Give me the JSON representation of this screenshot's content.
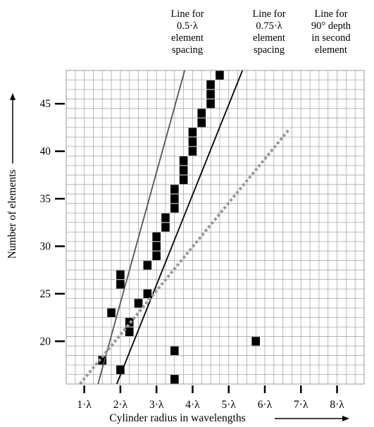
{
  "chart_data": {
    "type": "scatter",
    "xlabel": "Cylinder radius in wavelengths",
    "ylabel": "Number of elements",
    "x_ticks": [
      {
        "value": 1,
        "label": "1·λ"
      },
      {
        "value": 2,
        "label": "2·λ"
      },
      {
        "value": 3,
        "label": "3·λ"
      },
      {
        "value": 4,
        "label": "4·λ"
      },
      {
        "value": 5,
        "label": "5·λ"
      },
      {
        "value": 6,
        "label": "6·λ"
      },
      {
        "value": 7,
        "label": "7·λ"
      },
      {
        "value": 8,
        "label": "8·λ"
      }
    ],
    "y_ticks": [
      {
        "value": 20,
        "label": "20"
      },
      {
        "value": 25,
        "label": "25"
      },
      {
        "value": 30,
        "label": "30"
      },
      {
        "value": 35,
        "label": "35"
      },
      {
        "value": 40,
        "label": "40"
      },
      {
        "value": 45,
        "label": "45"
      }
    ],
    "xlim": [
      0.5,
      8.75
    ],
    "ylim": [
      15.5,
      48.5
    ],
    "grid": true,
    "cell_width": 0.25,
    "series": [
      {
        "name": "",
        "marker": "filled-square",
        "points": [
          {
            "x": 1.5,
            "y": 18
          },
          {
            "x": 1.75,
            "y": 23
          },
          {
            "x": 2.0,
            "y": 17
          },
          {
            "x": 2.0,
            "y": 26
          },
          {
            "x": 2.0,
            "y": 27
          },
          {
            "x": 2.25,
            "y": 21
          },
          {
            "x": 2.25,
            "y": 22
          },
          {
            "x": 2.5,
            "y": 24
          },
          {
            "x": 2.75,
            "y": 25
          },
          {
            "x": 2.75,
            "y": 28
          },
          {
            "x": 3.0,
            "y": 29
          },
          {
            "x": 3.0,
            "y": 30
          },
          {
            "x": 3.0,
            "y": 31
          },
          {
            "x": 3.25,
            "y": 32
          },
          {
            "x": 3.25,
            "y": 33
          },
          {
            "x": 3.5,
            "y": 16
          },
          {
            "x": 3.5,
            "y": 19
          },
          {
            "x": 3.5,
            "y": 34
          },
          {
            "x": 3.5,
            "y": 35
          },
          {
            "x": 3.5,
            "y": 36
          },
          {
            "x": 3.75,
            "y": 37
          },
          {
            "x": 3.75,
            "y": 38
          },
          {
            "x": 3.75,
            "y": 39
          },
          {
            "x": 4.0,
            "y": 40
          },
          {
            "x": 4.0,
            "y": 41
          },
          {
            "x": 4.0,
            "y": 42
          },
          {
            "x": 4.25,
            "y": 43
          },
          {
            "x": 4.25,
            "y": 44
          },
          {
            "x": 4.5,
            "y": 45
          },
          {
            "x": 4.5,
            "y": 46
          },
          {
            "x": 4.5,
            "y": 47
          },
          {
            "x": 4.75,
            "y": 48
          },
          {
            "x": 5.75,
            "y": 20
          }
        ]
      }
    ],
    "lines": [
      {
        "id": "line-half-lambda",
        "style": "solid",
        "color": "#555555",
        "label_lines": [
          "Line for",
          "0.5·λ",
          "element",
          "spacing"
        ],
        "from": [
          1.38,
          15.5
        ],
        "to": [
          3.78,
          48.5
        ]
      },
      {
        "id": "line-three-quarter-lambda",
        "style": "solid",
        "color": "#000000",
        "label_lines": [
          "Line for",
          "0.75·λ",
          "element",
          "spacing"
        ],
        "from": [
          1.9,
          15.5
        ],
        "to": [
          5.38,
          48.5
        ]
      },
      {
        "id": "line-90-depth",
        "style": "dotted",
        "color": "#9a9a9a",
        "label_lines": [
          "Line for",
          "90° depth",
          "in second",
          "element"
        ],
        "from": [
          0.88,
          15.5
        ],
        "to": [
          6.65,
          42.2
        ]
      }
    ]
  }
}
